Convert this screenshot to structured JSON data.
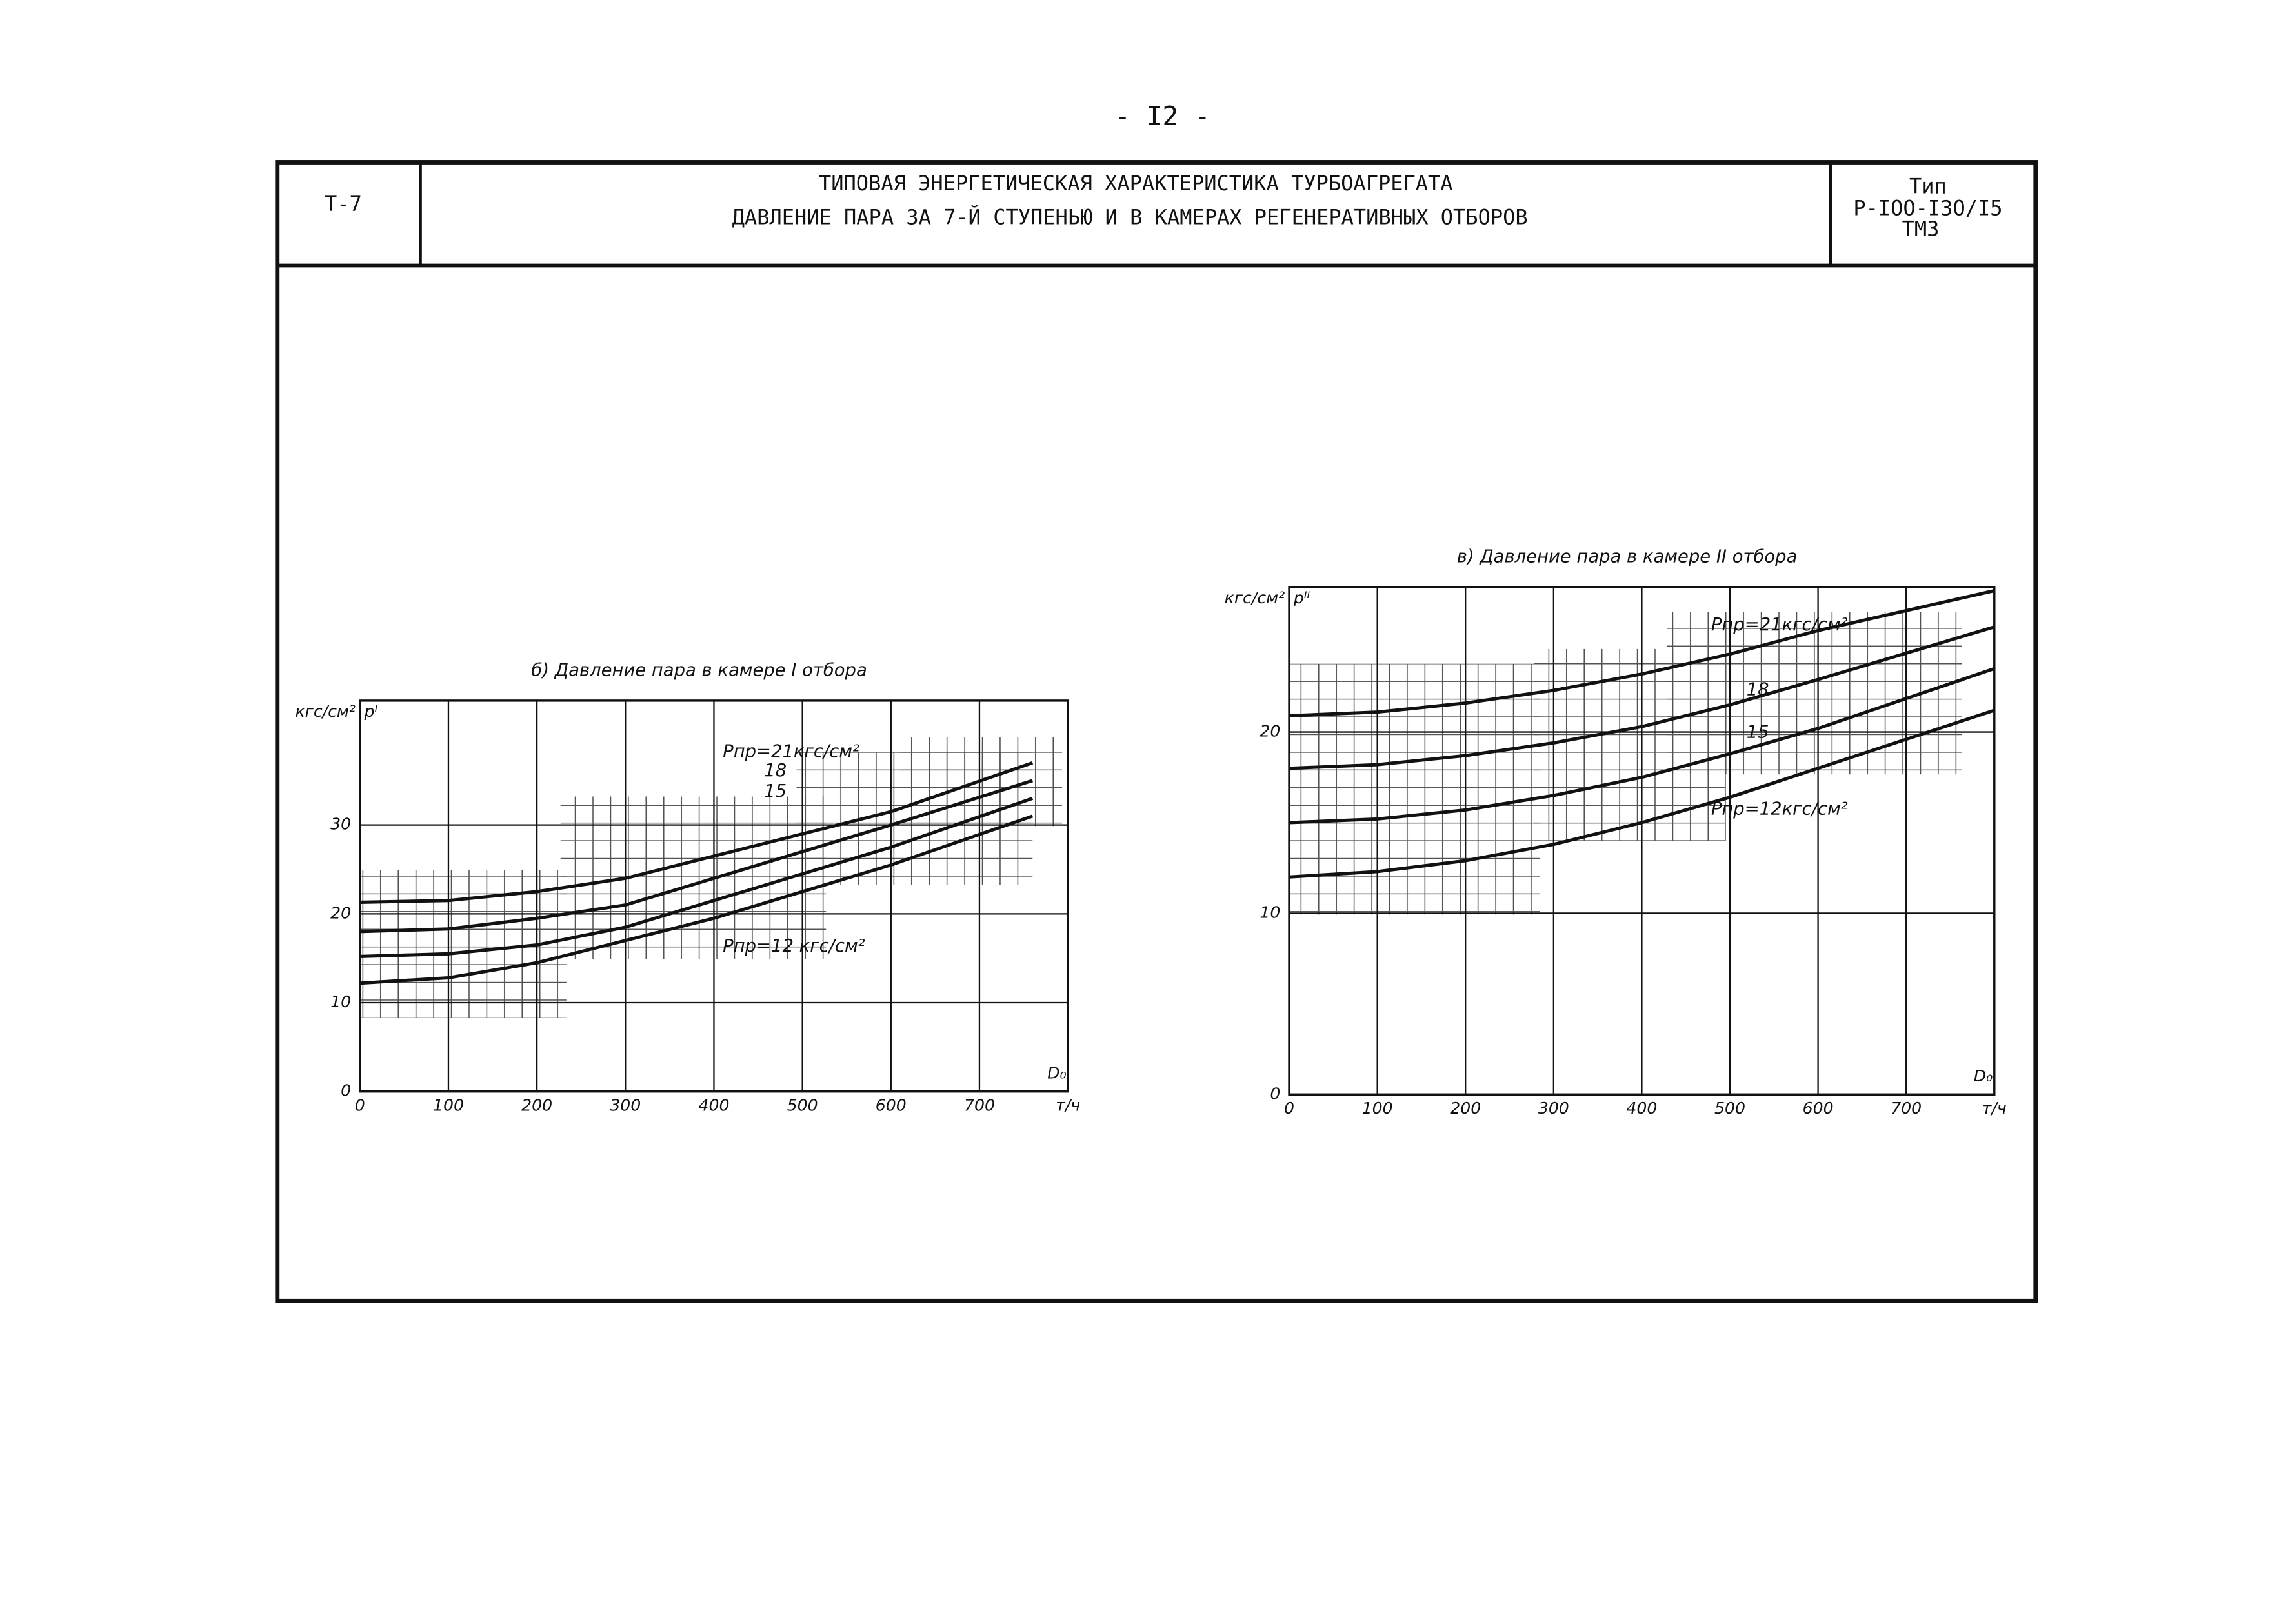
{
  "page_number": "- I2 -",
  "header": {
    "code": "Т-7",
    "title_line1": "ТИПОВАЯ ЭНЕРГЕТИЧЕСКАЯ ХАРАКТЕРИСТИКА ТУРБОАГРЕГАТА",
    "title_line2": "ДАВЛЕНИЕ ПАРА ЗА 7-Й СТУПЕНЬЮ И В КАМЕРАХ РЕГЕНЕРАТИВНЫХ ОТБОРОВ",
    "type_label": "Тип",
    "type_model": "Р-IOO-I3O/I5",
    "type_maker": "ТМЗ"
  },
  "chart_data": [
    {
      "type": "line",
      "title": "б) Давление пара в камере I отбора",
      "y_unit": "кгс/см²",
      "y_label": "pᴵ",
      "x_label": "D₀",
      "x_unit": "т/ч",
      "x": [
        0,
        100,
        200,
        300,
        400,
        500,
        600,
        760
      ],
      "xlim": [
        0,
        800
      ],
      "xticks": [
        0,
        100,
        200,
        300,
        400,
        500,
        600,
        700
      ],
      "ylim": [
        0,
        44
      ],
      "yticks": [
        0,
        10,
        20,
        30
      ],
      "grid": true,
      "series": [
        {
          "name": "Pпр=21кгс/см²",
          "color": "#111",
          "values": [
            21.3,
            21.5,
            22.5,
            24,
            26.5,
            29,
            31.5,
            37
          ]
        },
        {
          "name": "18",
          "color": "#111",
          "values": [
            18,
            18.3,
            19.5,
            21,
            24,
            27,
            30,
            35
          ]
        },
        {
          "name": "15",
          "color": "#111",
          "values": [
            15.2,
            15.5,
            16.5,
            18.5,
            21.5,
            24.5,
            27.5,
            33
          ]
        },
        {
          "name": "Pпр=12 кгс/см²",
          "color": "#111",
          "values": [
            12.2,
            12.8,
            14.5,
            17,
            19.5,
            22.5,
            25.5,
            31
          ]
        }
      ]
    },
    {
      "type": "line",
      "title": "в) Давление пара в камере II отбора",
      "y_unit": "кгс/см²",
      "y_label": "pᴵᴵ",
      "x_label": "D₀",
      "x_unit": "т/ч",
      "x": [
        0,
        100,
        200,
        300,
        400,
        500,
        600,
        800
      ],
      "xlim": [
        0,
        800
      ],
      "xticks": [
        0,
        100,
        200,
        300,
        400,
        500,
        600,
        700
      ],
      "ylim": [
        0,
        28
      ],
      "yticks": [
        0,
        10,
        20
      ],
      "grid": true,
      "series": [
        {
          "name": "Pпр=21кгс/см²",
          "color": "#111",
          "values": [
            20.9,
            21.1,
            21.6,
            22.3,
            23.2,
            24.3,
            25.6,
            27.8
          ]
        },
        {
          "name": "18",
          "color": "#111",
          "values": [
            18,
            18.2,
            18.7,
            19.4,
            20.3,
            21.5,
            22.9,
            25.8
          ]
        },
        {
          "name": "15",
          "color": "#111",
          "values": [
            15,
            15.2,
            15.7,
            16.5,
            17.5,
            18.8,
            20.2,
            23.5
          ]
        },
        {
          "name": "Pпр=12кгс/см²",
          "color": "#111",
          "values": [
            12,
            12.3,
            12.9,
            13.8,
            15,
            16.4,
            18,
            21.2
          ]
        }
      ]
    }
  ]
}
